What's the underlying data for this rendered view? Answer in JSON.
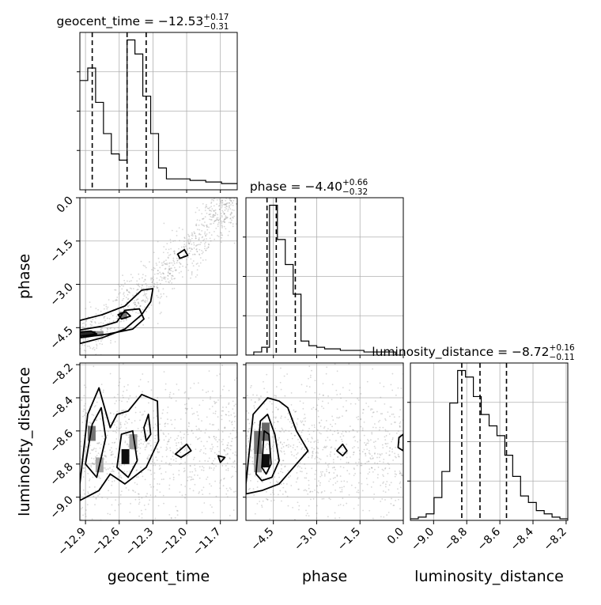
{
  "chart_data": {
    "type": "corner",
    "parameters": [
      "geocent_time",
      "phase",
      "luminosity_distance"
    ],
    "axis_labels": {
      "geocent_time": "geocent_time",
      "phase": "phase",
      "luminosity_distance": "luminosity_distance"
    },
    "ranges": {
      "geocent_time": [
        -12.95,
        -11.55
      ],
      "phase": [
        -5.45,
        0.0
      ],
      "luminosity_distance": [
        -9.14,
        -8.19
      ]
    },
    "ticks": {
      "geocent_time": [
        -12.9,
        -12.6,
        -12.3,
        -12.0,
        -11.7
      ],
      "phase": [
        -4.5,
        -3.0,
        -1.5,
        0.0
      ],
      "luminosity_distance": [
        -9.0,
        -8.8,
        -8.6,
        -8.4,
        -8.2
      ]
    },
    "tick_labels": {
      "geocent_time": [
        "−12.9",
        "−12.6",
        "−12.3",
        "−12.0",
        "−11.7"
      ],
      "phase": [
        "−4.5",
        "−3.0",
        "−1.5",
        "0.0"
      ],
      "luminosity_distance": [
        "−9.0",
        "−8.8",
        "−8.6",
        "−8.4",
        "−8.2"
      ]
    },
    "titles": {
      "geocent_time": {
        "label": "geocent_time = ",
        "median": "−12.53",
        "plus": "+0.17",
        "minus": "−0.31"
      },
      "phase": {
        "label": "phase = ",
        "median": "−4.40",
        "plus": "+0.66",
        "minus": "−0.32"
      },
      "luminosity_distance": {
        "label": "luminosity_distance = ",
        "median": "−8.72",
        "plus": "+0.16",
        "minus": "−0.11"
      }
    },
    "quantiles": {
      "geocent_time": [
        -12.84,
        -12.53,
        -12.36
      ],
      "phase": [
        -4.72,
        -4.4,
        -3.74
      ],
      "luminosity_distance": [
        -8.83,
        -8.72,
        -8.56
      ]
    },
    "histograms": {
      "geocent_time": {
        "edges": [
          -12.95,
          -12.88,
          -12.81,
          -12.74,
          -12.67,
          -12.6,
          -12.53,
          -12.46,
          -12.39,
          -12.32,
          -12.25,
          -12.18,
          -12.11,
          -12.04,
          -11.97,
          -11.9,
          -11.83,
          -11.76,
          -11.69,
          -11.62,
          -11.55
        ],
        "counts": [
          0.7,
          0.78,
          0.56,
          0.36,
          0.23,
          0.19,
          0.96,
          0.87,
          0.6,
          0.36,
          0.14,
          0.07,
          0.07,
          0.07,
          0.06,
          0.06,
          0.05,
          0.05,
          0.04,
          0.04
        ]
      },
      "phase": {
        "edges": [
          -5.45,
          -5.1775,
          -4.905,
          -4.6325,
          -4.36,
          -4.0875,
          -3.815,
          -3.5425,
          -3.27,
          -2.9975,
          -2.725,
          -2.4525,
          -2.18,
          -1.9075,
          -1.635,
          -1.3625,
          -1.09,
          -0.8175,
          -0.545,
          -0.2725,
          0.0
        ],
        "counts": [
          0.0,
          0.02,
          0.05,
          0.96,
          0.74,
          0.58,
          0.39,
          0.09,
          0.06,
          0.05,
          0.04,
          0.04,
          0.03,
          0.03,
          0.03,
          0.02,
          0.02,
          0.02,
          0.02,
          0.0
        ]
      },
      "luminosity_distance": {
        "edges": [
          -9.14,
          -9.0925,
          -9.045,
          -8.9975,
          -8.95,
          -8.9025,
          -8.855,
          -8.8075,
          -8.76,
          -8.7125,
          -8.665,
          -8.6175,
          -8.57,
          -8.5225,
          -8.475,
          -8.4275,
          -8.38,
          -8.3325,
          -8.285,
          -8.2375,
          -8.19
        ],
        "counts": [
          0.01,
          0.02,
          0.04,
          0.14,
          0.3,
          0.72,
          0.92,
          0.88,
          0.76,
          0.65,
          0.58,
          0.52,
          0.4,
          0.27,
          0.15,
          0.11,
          0.06,
          0.04,
          0.02,
          0.01
        ]
      }
    },
    "contours": {
      "phase_vs_geocent_time": [
        [
          [
            -12.95,
            -4.25
          ],
          [
            -12.75,
            -4.05
          ],
          [
            -12.55,
            -3.75
          ],
          [
            -12.4,
            -3.2
          ],
          [
            -12.3,
            -3.15
          ],
          [
            -12.32,
            -3.6
          ],
          [
            -12.4,
            -4.05
          ],
          [
            -12.55,
            -4.55
          ],
          [
            -12.75,
            -4.85
          ],
          [
            -12.95,
            -5.05
          ]
        ],
        [
          [
            -12.95,
            -4.58
          ],
          [
            -12.75,
            -4.45
          ],
          [
            -12.62,
            -4.3
          ],
          [
            -12.55,
            -3.9
          ],
          [
            -12.42,
            -3.85
          ],
          [
            -12.38,
            -4.2
          ],
          [
            -12.48,
            -4.55
          ],
          [
            -12.7,
            -4.72
          ],
          [
            -12.95,
            -4.85
          ]
        ],
        [
          [
            -12.95,
            -4.65
          ],
          [
            -12.85,
            -4.62
          ],
          [
            -12.8,
            -4.72
          ],
          [
            -12.95,
            -4.8
          ]
        ],
        [
          [
            -12.61,
            -4.05
          ],
          [
            -12.54,
            -3.95
          ],
          [
            -12.5,
            -4.1
          ],
          [
            -12.58,
            -4.2
          ]
        ],
        [
          [
            -12.08,
            -1.95
          ],
          [
            -12.02,
            -1.8
          ],
          [
            -11.99,
            -2.0
          ],
          [
            -12.06,
            -2.1
          ]
        ]
      ],
      "luminosity_distance_vs_geocent_time": [
        [
          [
            -12.95,
            -8.92
          ],
          [
            -12.88,
            -8.5
          ],
          [
            -12.78,
            -8.34
          ],
          [
            -12.68,
            -8.58
          ],
          [
            -12.62,
            -8.5
          ],
          [
            -12.52,
            -8.48
          ],
          [
            -12.4,
            -8.38
          ],
          [
            -12.26,
            -8.42
          ],
          [
            -12.25,
            -8.66
          ],
          [
            -12.36,
            -8.82
          ],
          [
            -12.55,
            -8.92
          ],
          [
            -12.68,
            -8.86
          ],
          [
            -12.78,
            -8.96
          ],
          [
            -12.95,
            -9.02
          ]
        ],
        [
          [
            -12.9,
            -8.8
          ],
          [
            -12.84,
            -8.56
          ],
          [
            -12.76,
            -8.46
          ],
          [
            -12.72,
            -8.64
          ],
          [
            -12.8,
            -8.88
          ]
        ],
        [
          [
            -12.62,
            -8.82
          ],
          [
            -12.58,
            -8.62
          ],
          [
            -12.48,
            -8.6
          ],
          [
            -12.44,
            -8.78
          ],
          [
            -12.52,
            -8.88
          ]
        ],
        [
          [
            -12.38,
            -8.58
          ],
          [
            -12.34,
            -8.5
          ],
          [
            -12.32,
            -8.62
          ],
          [
            -12.36,
            -8.66
          ]
        ],
        [
          [
            -12.1,
            -8.74
          ],
          [
            -12.0,
            -8.68
          ],
          [
            -11.96,
            -8.72
          ],
          [
            -12.05,
            -8.76
          ]
        ],
        [
          [
            -11.72,
            -8.75
          ],
          [
            -11.66,
            -8.76
          ],
          [
            -11.7,
            -8.79
          ]
        ]
      ],
      "luminosity_distance_vs_phase": [
        [
          [
            -5.45,
            -8.92
          ],
          [
            -5.2,
            -8.5
          ],
          [
            -4.7,
            -8.4
          ],
          [
            -4.3,
            -8.42
          ],
          [
            -4.0,
            -8.46
          ],
          [
            -3.7,
            -8.6
          ],
          [
            -3.3,
            -8.72
          ],
          [
            -3.8,
            -8.82
          ],
          [
            -4.3,
            -8.92
          ],
          [
            -4.9,
            -8.96
          ],
          [
            -5.45,
            -8.98
          ]
        ],
        [
          [
            -5.1,
            -8.86
          ],
          [
            -4.95,
            -8.54
          ],
          [
            -4.7,
            -8.5
          ],
          [
            -4.45,
            -8.62
          ],
          [
            -4.3,
            -8.78
          ],
          [
            -4.55,
            -8.88
          ],
          [
            -4.9,
            -8.9
          ]
        ],
        [
          [
            -4.9,
            -8.82
          ],
          [
            -4.82,
            -8.6
          ],
          [
            -4.65,
            -8.62
          ],
          [
            -4.58,
            -8.8
          ],
          [
            -4.75,
            -8.86
          ]
        ],
        [
          [
            -2.3,
            -8.72
          ],
          [
            -2.1,
            -8.68
          ],
          [
            -1.95,
            -8.72
          ],
          [
            -2.1,
            -8.75
          ]
        ],
        [
          [
            0.0,
            -8.62
          ],
          [
            -0.15,
            -8.64
          ],
          [
            -0.18,
            -8.7
          ],
          [
            0.0,
            -8.72
          ]
        ]
      ]
    },
    "density_blocks": {
      "phase_vs_geocent_time": [
        {
          "x": [
            -12.95,
            -12.81
          ],
          "y": [
            -4.8,
            -4.62
          ],
          "w": 0.85
        },
        {
          "x": [
            -12.81,
            -12.74
          ],
          "y": [
            -4.8,
            -4.62
          ],
          "w": 0.45
        },
        {
          "x": [
            -12.6,
            -12.53
          ],
          "y": [
            -4.2,
            -3.95
          ],
          "w": 0.55
        }
      ],
      "luminosity_distance_vs_geocent_time": [
        {
          "x": [
            -12.58,
            -12.51
          ],
          "y": [
            -8.8,
            -8.71
          ],
          "w": 0.95
        },
        {
          "x": [
            -12.88,
            -12.81
          ],
          "y": [
            -8.66,
            -8.57
          ],
          "w": 0.55
        },
        {
          "x": [
            -12.81,
            -12.74
          ],
          "y": [
            -8.85,
            -8.76
          ],
          "w": 0.35
        },
        {
          "x": [
            -12.51,
            -12.44
          ],
          "y": [
            -8.71,
            -8.62
          ],
          "w": 0.4
        }
      ],
      "luminosity_distance_vs_phase": [
        {
          "x": [
            -4.9,
            -4.63
          ],
          "y": [
            -8.82,
            -8.74
          ],
          "w": 0.95
        },
        {
          "x": [
            -5.17,
            -4.9
          ],
          "y": [
            -8.74,
            -8.6
          ],
          "w": 0.55
        },
        {
          "x": [
            -4.9,
            -4.63
          ],
          "y": [
            -8.66,
            -8.55
          ],
          "w": 0.6
        },
        {
          "x": [
            -5.17,
            -4.9
          ],
          "y": [
            -8.85,
            -8.74
          ],
          "w": 0.4
        }
      ]
    },
    "scatter_cloud": {
      "phase_vs_geocent_time": {
        "trend": [
          [
            -12.95,
            -5.0
          ],
          [
            -12.6,
            -3.9
          ],
          [
            -12.3,
            -3.0
          ],
          [
            -12.0,
            -1.9
          ],
          [
            -11.75,
            -0.6
          ],
          [
            -11.6,
            -0.1
          ]
        ],
        "spread": 0.45,
        "n": 900
      },
      "luminosity_distance_vs_geocent_time": {
        "xrange": [
          -12.95,
          -11.55
        ],
        "ycenter": -8.72,
        "yspread": 0.22,
        "n": 900
      },
      "luminosity_distance_vs_phase": {
        "xrange": [
          -5.45,
          0.0
        ],
        "ycenter": -8.72,
        "yspread": 0.22,
        "n": 900
      }
    },
    "grid": true
  }
}
